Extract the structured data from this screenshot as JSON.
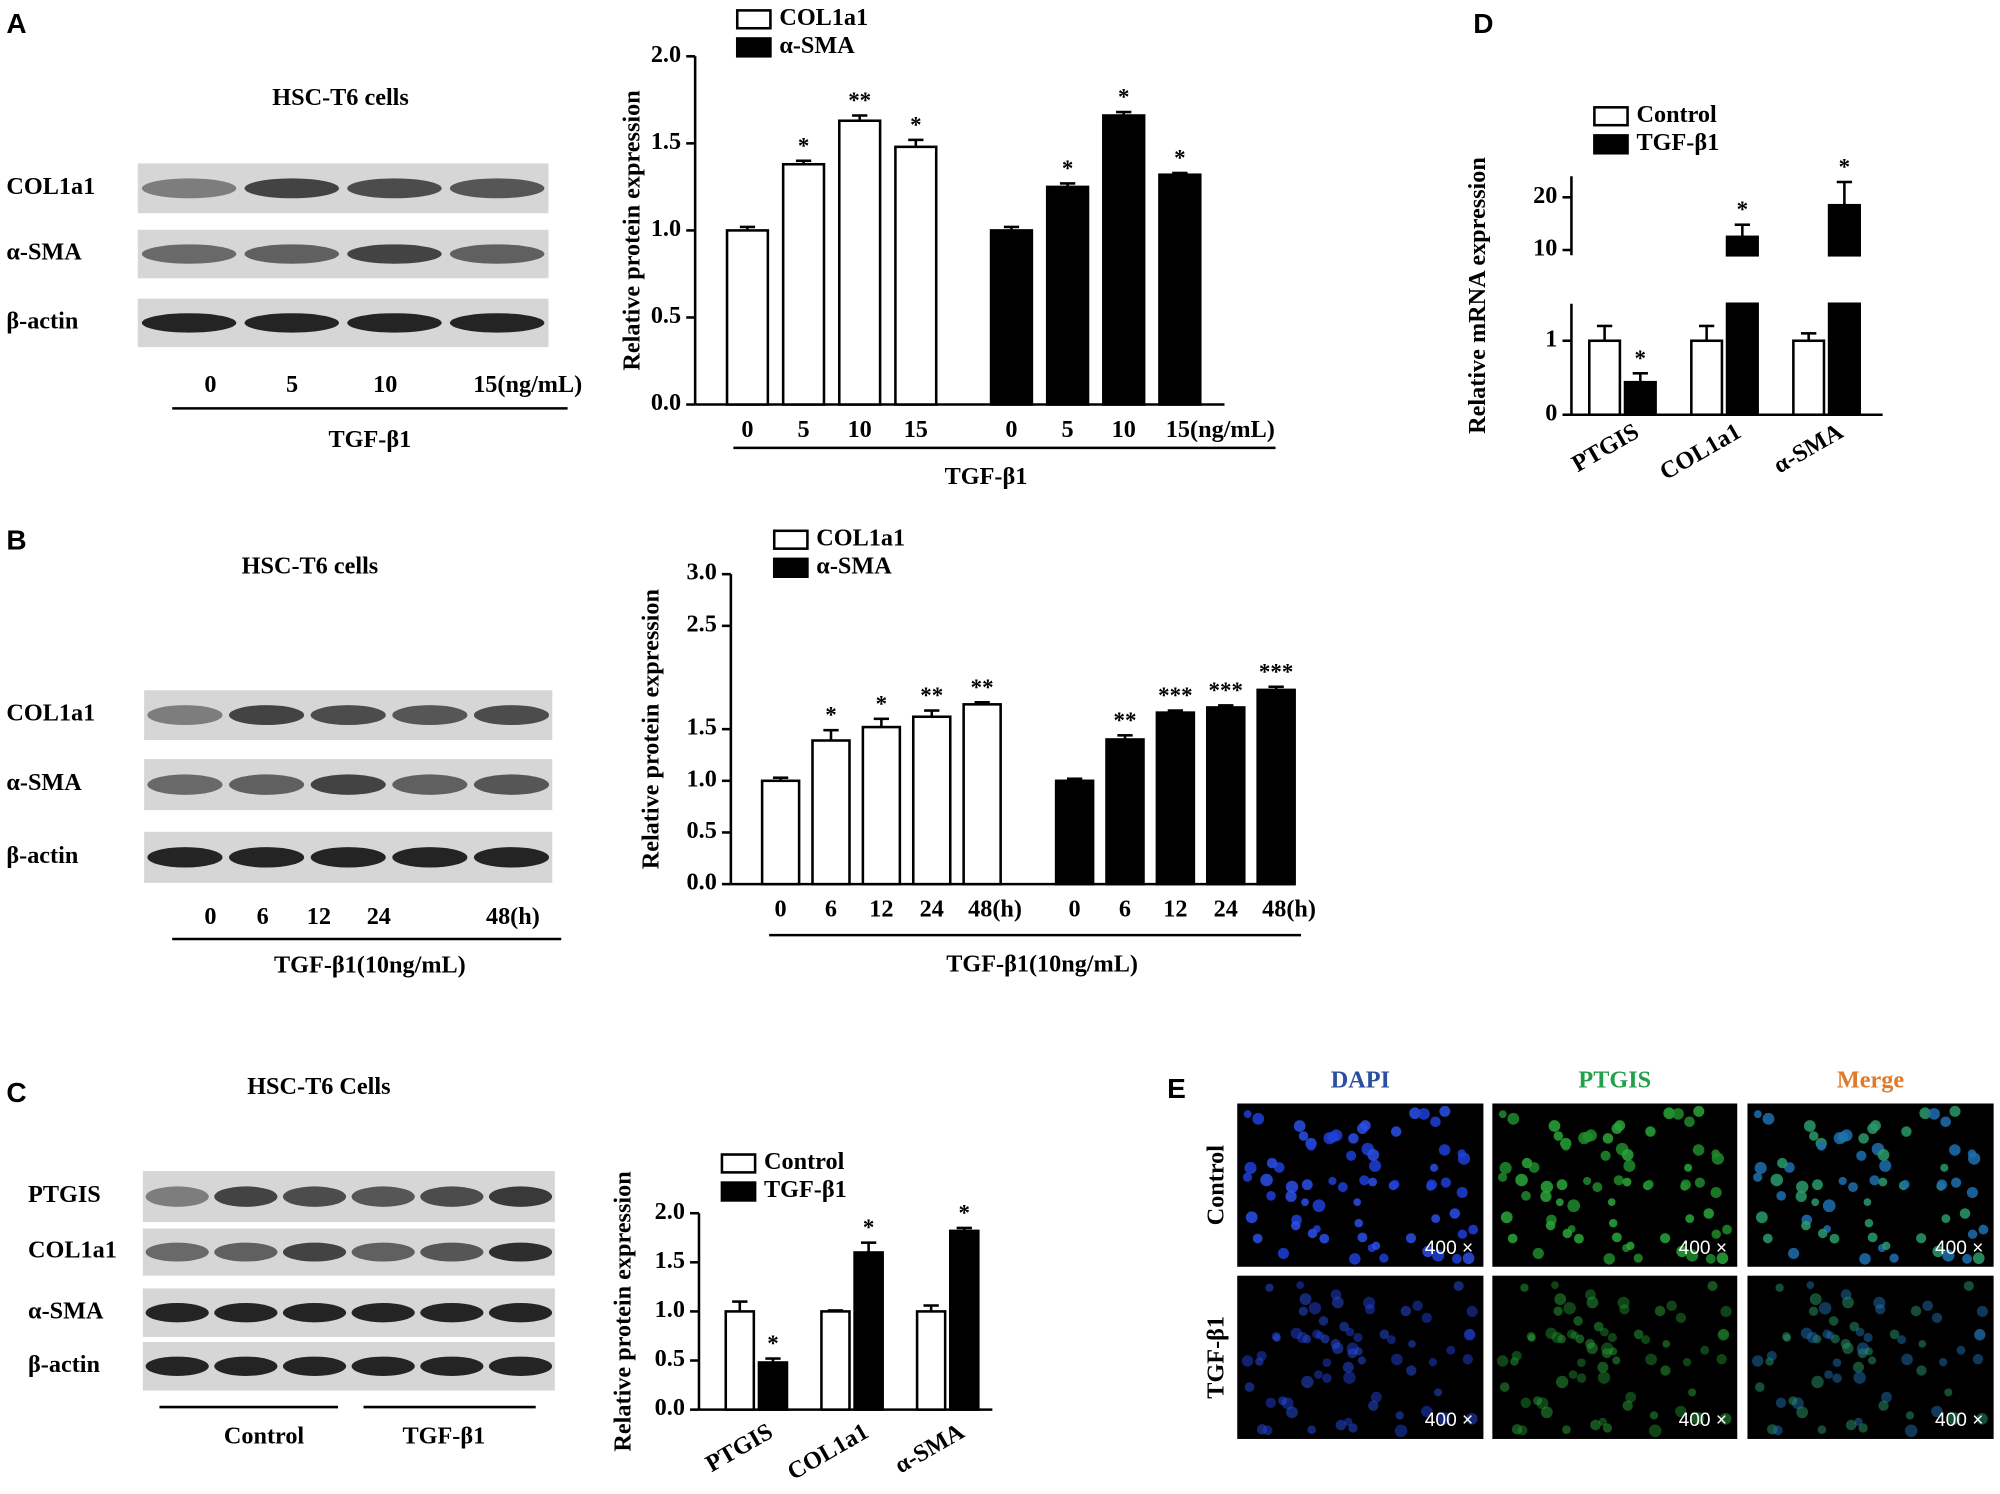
{
  "chart_data": [
    {
      "type": "bar",
      "ylabel": "Relative protein expression",
      "xlabel": "TGF-β1",
      "ylim": [
        0,
        2
      ],
      "yticks": [
        {
          "value": 0,
          "label": "0.0"
        },
        0.5,
        {
          "value": 1,
          "label": "1.0"
        },
        1.5,
        {
          "value": 2,
          "label": "2.0"
        }
      ],
      "categories": [
        "0",
        "5",
        "10",
        "15",
        "0",
        "5",
        "10",
        "15(ng/mL)"
      ],
      "series": [
        {
          "name": "COL1a1",
          "color": "#ffffff",
          "values": [
            1.0,
            1.38,
            1.63,
            1.48,
            null,
            null,
            null,
            null
          ],
          "errors": [
            0.02,
            0.02,
            0.03,
            0.04,
            null,
            null,
            null,
            null
          ],
          "significance": [
            null,
            "*",
            "**",
            "*",
            null,
            null,
            null,
            null
          ]
        },
        {
          "name": "α-SMA",
          "color": "#000000",
          "values": [
            null,
            null,
            null,
            null,
            1.0,
            1.25,
            1.66,
            1.32
          ],
          "errors": [
            null,
            null,
            null,
            null,
            0.02,
            0.02,
            0.02,
            0.01
          ],
          "significance": [
            null,
            null,
            null,
            null,
            null,
            "*",
            "*",
            "*"
          ]
        }
      ]
    },
    {
      "type": "bar",
      "ylabel": "Relative protein expression",
      "xlabel": "TGF-β1(10ng/mL)",
      "ylim": [
        0,
        3
      ],
      "yticks": [
        {
          "value": 0,
          "label": "0.0"
        },
        0.5,
        {
          "value": 1,
          "label": "1.0"
        },
        1.5,
        2.5,
        {
          "value": 3,
          "label": "3.0"
        }
      ],
      "categories": [
        "0",
        "6",
        "12",
        "24",
        "48(h)",
        "0",
        "6",
        "12",
        "24",
        "48(h)"
      ],
      "series": [
        {
          "name": "COL1a1",
          "color": "#ffffff",
          "values": [
            1.0,
            1.39,
            1.52,
            1.62,
            1.74,
            null,
            null,
            null,
            null,
            null
          ],
          "errors": [
            0.03,
            0.1,
            0.08,
            0.06,
            0.02,
            null,
            null,
            null,
            null,
            null
          ],
          "significance": [
            null,
            "*",
            "*",
            "**",
            "**",
            null,
            null,
            null,
            null,
            null
          ]
        },
        {
          "name": "α-SMA",
          "color": "#000000",
          "values": [
            null,
            null,
            null,
            null,
            null,
            1.0,
            1.4,
            1.66,
            1.71,
            1.88
          ],
          "errors": [
            null,
            null,
            null,
            null,
            null,
            0.02,
            0.04,
            0.02,
            0.02,
            0.03
          ],
          "significance": [
            null,
            null,
            null,
            null,
            null,
            null,
            "**",
            "***",
            "***",
            "***"
          ]
        }
      ]
    },
    {
      "type": "bar",
      "ylabel": "Relative protein expression",
      "ylim": [
        0,
        2
      ],
      "yticks": [
        {
          "value": 0,
          "label": "0.0"
        },
        0.5,
        {
          "value": 1,
          "label": "1.0"
        },
        1.5,
        {
          "value": 2,
          "label": "2.0"
        }
      ],
      "categories": [
        "PTGIS",
        "COL1a1",
        "α-SMA"
      ],
      "series": [
        {
          "name": "Control",
          "color": "#ffffff",
          "values": [
            1.0,
            1.0,
            1.0
          ],
          "errors": [
            0.1,
            0.01,
            0.06
          ],
          "significance": [
            null,
            null,
            null
          ]
        },
        {
          "name": "TGF-β1",
          "color": "#000000",
          "values": [
            0.48,
            1.6,
            1.82
          ],
          "errors": [
            0.04,
            0.1,
            0.03
          ],
          "significance": [
            "*",
            "*",
            "*"
          ]
        }
      ]
    },
    {
      "type": "bar",
      "panel": "D",
      "ylabel": "Relative mRNA expression",
      "y_segments": [
        {
          "ylim": [
            0,
            1.5
          ],
          "yticks": [
            0,
            1
          ]
        },
        {
          "ylim": [
            9,
            24
          ],
          "yticks": [
            10,
            20
          ]
        }
      ],
      "categories": [
        "PTGIS",
        "COL1a1",
        "α-SMA"
      ],
      "series": [
        {
          "name": "Control",
          "color": "#ffffff",
          "values": [
            1.0,
            1.0,
            1.0
          ],
          "errors": [
            0.2,
            0.2,
            0.1
          ],
          "significance": [
            null,
            null,
            null
          ]
        },
        {
          "name": "TGF-β1",
          "color": "#000000",
          "values": [
            0.44,
            12.5,
            18.5
          ],
          "errors": [
            0.12,
            2.3,
            4.4
          ],
          "significance": [
            "*",
            "*",
            "*"
          ]
        }
      ]
    }
  ],
  "blots": [
    {
      "panel": "A",
      "title": "HSC-T6 cells",
      "rows": [
        "COL1a1",
        "α-SMA",
        "β-actin"
      ],
      "lanes": [
        "0",
        "5",
        "10",
        "15(ng/mL)"
      ],
      "treatment": "TGF-β1"
    },
    {
      "panel": "B",
      "title": "HSC-T6 cells",
      "rows": [
        "COL1a1",
        "α-SMA",
        "β-actin"
      ],
      "lanes": [
        "0",
        "6",
        "12",
        "24",
        "48(h)"
      ],
      "treatment": "TGF-β1(10ng/mL)"
    },
    {
      "panel": "C",
      "title": "HSC-T6 Cells",
      "rows": [
        "PTGIS",
        "COL1a1",
        "α-SMA",
        "β-actin"
      ],
      "groups": [
        "Control",
        "TGF-β1"
      ]
    }
  ],
  "panel_e": {
    "panel": "E",
    "columns": [
      "DAPI",
      "PTGIS",
      "Merge"
    ],
    "rows": [
      "Control",
      "TGF-β1"
    ],
    "magnification": "400 ×"
  }
}
